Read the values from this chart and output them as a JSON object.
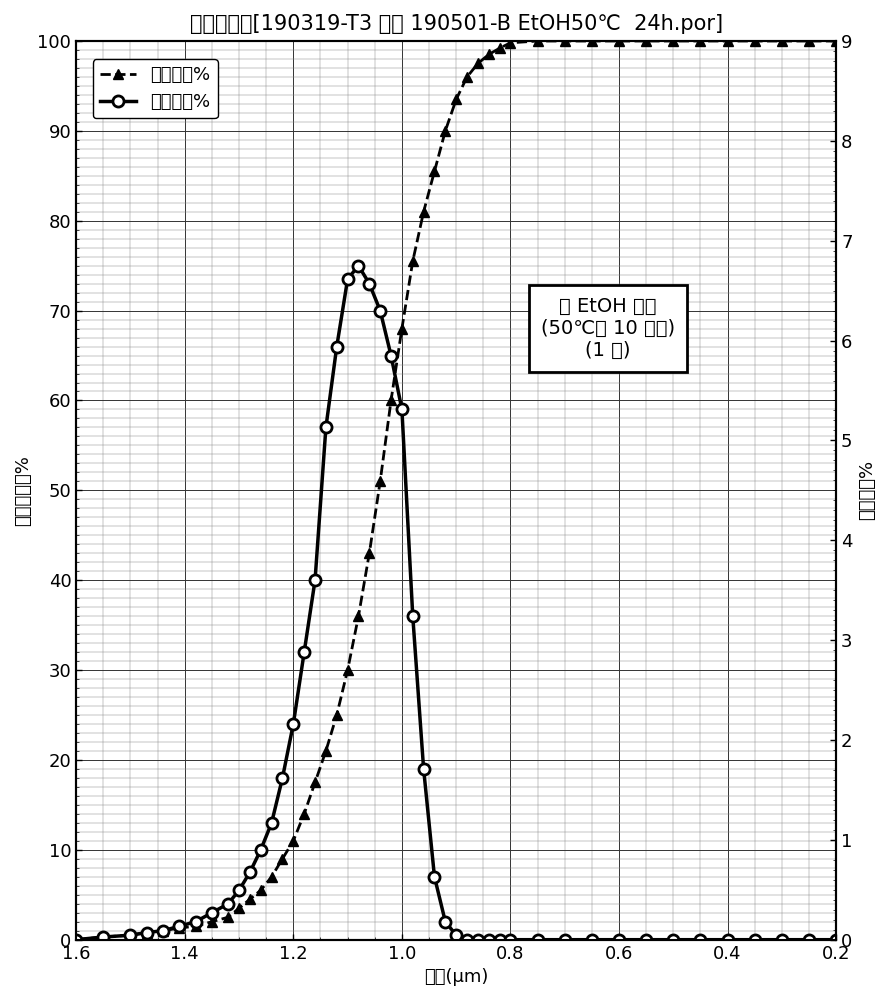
{
  "title": "孔流量分布[190319-T3 实验 190501-B EtOH50℃  24h.por]",
  "xlabel": "孔径(μm)",
  "ylabel_left": "累积孔流量%",
  "ylabel_right": "差示流量%",
  "legend_cumulative": "累积流量%",
  "legend_differential": "差示流量%",
  "annotation_text": "从 EtOH 干燥\n(50℃下 10 分钟)\n(1 天)",
  "x_cumulative": [
    1.6,
    1.55,
    1.5,
    1.47,
    1.44,
    1.41,
    1.38,
    1.35,
    1.32,
    1.3,
    1.28,
    1.26,
    1.24,
    1.22,
    1.2,
    1.18,
    1.16,
    1.14,
    1.12,
    1.1,
    1.08,
    1.06,
    1.04,
    1.02,
    1.0,
    0.98,
    0.96,
    0.94,
    0.92,
    0.9,
    0.88,
    0.86,
    0.84,
    0.82,
    0.8,
    0.75,
    0.7,
    0.65,
    0.6,
    0.55,
    0.5,
    0.45,
    0.4,
    0.35,
    0.3,
    0.25,
    0.2
  ],
  "y_cumulative": [
    0.0,
    0.3,
    0.5,
    0.8,
    1.0,
    1.3,
    1.5,
    2.0,
    2.5,
    3.5,
    4.5,
    5.5,
    7.0,
    9.0,
    11.0,
    14.0,
    17.5,
    21.0,
    25.0,
    30.0,
    36.0,
    43.0,
    51.0,
    60.0,
    68.0,
    75.5,
    81.0,
    85.5,
    90.0,
    93.5,
    96.0,
    97.5,
    98.5,
    99.2,
    99.8,
    100.0,
    100.0,
    100.0,
    100.0,
    100.0,
    100.0,
    100.0,
    100.0,
    100.0,
    100.0,
    100.0,
    100.0
  ],
  "x_differential": [
    1.6,
    1.55,
    1.5,
    1.47,
    1.44,
    1.41,
    1.38,
    1.35,
    1.32,
    1.3,
    1.28,
    1.26,
    1.24,
    1.22,
    1.2,
    1.18,
    1.16,
    1.14,
    1.12,
    1.1,
    1.08,
    1.06,
    1.04,
    1.02,
    1.0,
    0.98,
    0.96,
    0.94,
    0.92,
    0.9,
    0.88,
    0.86,
    0.84,
    0.82,
    0.8,
    0.75,
    0.7,
    0.65,
    0.6,
    0.55,
    0.5,
    0.45,
    0.4,
    0.35,
    0.3,
    0.25,
    0.2
  ],
  "y_differential": [
    0.0,
    0.3,
    0.5,
    0.8,
    1.0,
    1.5,
    2.0,
    3.0,
    4.0,
    5.5,
    7.5,
    10.0,
    13.0,
    18.0,
    24.0,
    32.0,
    40.0,
    57.0,
    66.0,
    73.5,
    75.0,
    73.0,
    70.0,
    65.0,
    59.0,
    36.0,
    19.0,
    7.0,
    2.0,
    0.5,
    0.0,
    0.0,
    0.0,
    0.0,
    0.0,
    0.0,
    0.0,
    0.0,
    0.0,
    0.0,
    0.0,
    0.0,
    0.0,
    0.0,
    0.0,
    0.0,
    0.0
  ],
  "xlim": [
    1.6,
    0.2
  ],
  "ylim_left": [
    0,
    100
  ],
  "ylim_right": [
    0,
    9
  ],
  "xticks": [
    1.6,
    1.4,
    1.2,
    1.0,
    0.8,
    0.6,
    0.4,
    0.2
  ],
  "yticks_left": [
    0,
    10,
    20,
    30,
    40,
    50,
    60,
    70,
    80,
    90,
    100
  ],
  "yticks_right": [
    0,
    1,
    2,
    3,
    4,
    5,
    6,
    7,
    8,
    9
  ],
  "background_color": "#ffffff",
  "line_color": "#000000",
  "title_fontsize": 15,
  "axis_label_fontsize": 13,
  "tick_fontsize": 13,
  "legend_fontsize": 13
}
